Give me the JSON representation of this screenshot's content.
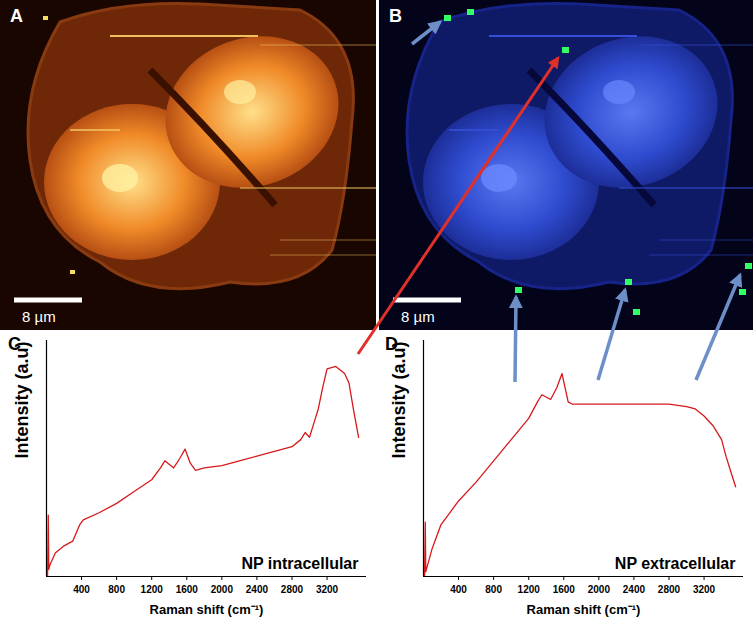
{
  "images": [
    {
      "label": "A",
      "scale_bar": "8 µm"
    },
    {
      "label": "B",
      "scale_bar": "8 µm"
    }
  ],
  "chart_data": [
    {
      "type": "line",
      "title": "C",
      "annotation": "NP intracellular",
      "x_label": "Raman shift (cm⁻¹)",
      "y_label": "Intensity (a.u)",
      "x": [
        0,
        12,
        20,
        26,
        40,
        100,
        200,
        300,
        380,
        420,
        600,
        800,
        1000,
        1200,
        1300,
        1350,
        1450,
        1520,
        1580,
        1640,
        1700,
        1800,
        2000,
        2200,
        2400,
        2600,
        2800,
        2900,
        2950,
        3000,
        3050,
        3100,
        3150,
        3200,
        3300,
        3400,
        3450,
        3500,
        3560
      ],
      "values": [
        0,
        0,
        26,
        3,
        5,
        10,
        13,
        15,
        22,
        24,
        27,
        31,
        36,
        41,
        46,
        49,
        46,
        50,
        54,
        48,
        45,
        46,
        47,
        49,
        51,
        53,
        55,
        58,
        61,
        59,
        65,
        71,
        80,
        88,
        89,
        86,
        82,
        71,
        59
      ],
      "color": "#d7191c",
      "xlim": [
        0,
        3650
      ],
      "xticks": [
        400,
        800,
        1200,
        1600,
        2000,
        2400,
        2800,
        3200
      ],
      "ylim": [
        0,
        100
      ],
      "tick_labels": "x"
    },
    {
      "type": "line",
      "title": "D",
      "annotation": "NP extracellular",
      "x_label": "Raman shift (cm⁻¹)",
      "y_label": "Intensity (a.u)",
      "x": [
        0,
        12,
        20,
        26,
        40,
        100,
        200,
        300,
        400,
        600,
        800,
        1000,
        1200,
        1300,
        1350,
        1450,
        1520,
        1580,
        1650,
        1700,
        2000,
        2400,
        2800,
        3000,
        3100,
        3200,
        3300,
        3400,
        3450,
        3500,
        3560
      ],
      "values": [
        0,
        0,
        23,
        2,
        4,
        12,
        22,
        27,
        32,
        40,
        49,
        58,
        67,
        74,
        77,
        75,
        80,
        86,
        74,
        73,
        73,
        73,
        73,
        72,
        71,
        68,
        64,
        58,
        51,
        45,
        38
      ],
      "color": "#d7191c",
      "xlim": [
        0,
        3650
      ],
      "xticks": [
        400,
        800,
        1200,
        1600,
        2000,
        2400,
        2800,
        3200
      ],
      "ylim": [
        0,
        100
      ],
      "tick_labels": "x"
    }
  ]
}
